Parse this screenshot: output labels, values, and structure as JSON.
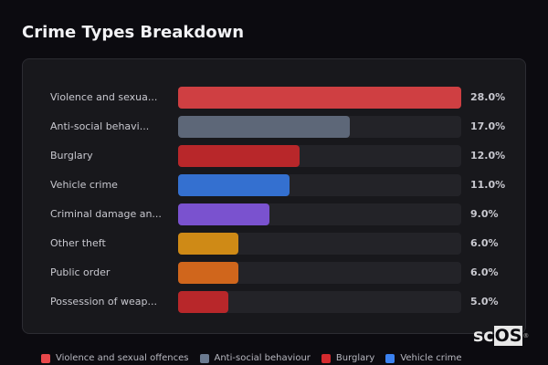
{
  "title": "Crime Types Breakdown",
  "chart_data": {
    "type": "bar",
    "orientation": "horizontal",
    "title": "Crime Types Breakdown",
    "categories": [
      "Violence and sexual offences",
      "Anti-social behaviour",
      "Burglary",
      "Vehicle crime",
      "Criminal damage and arson",
      "Other theft",
      "Public order",
      "Possession of weapons"
    ],
    "display_labels": [
      "Violence and sexua...",
      "Anti-social behavi...",
      "Burglary",
      "Vehicle crime",
      "Criminal damage an...",
      "Other theft",
      "Public order",
      "Possession of weap..."
    ],
    "values": [
      28.0,
      17.0,
      12.0,
      11.0,
      9.0,
      6.0,
      6.0,
      5.0
    ],
    "value_labels": [
      "28.0%",
      "17.0%",
      "12.0%",
      "11.0%",
      "9.0%",
      "6.0%",
      "6.0%",
      "5.0%"
    ],
    "colors": [
      "#cf3f42",
      "#5d6778",
      "#b8272a",
      "#3470d0",
      "#7a52cf",
      "#cf8a16",
      "#d0661c",
      "#b8272a"
    ],
    "unit": "%",
    "xlabel": "",
    "ylabel": "",
    "grid": false,
    "legend_position": "bottom"
  },
  "legend": [
    {
      "label": "Violence and sexual offences",
      "color": "#e8484b"
    },
    {
      "label": "Anti-social behaviour",
      "color": "#6b7a90"
    },
    {
      "label": "Burglary",
      "color": "#d42a2e"
    },
    {
      "label": "Vehicle crime",
      "color": "#3b82f0"
    }
  ],
  "watermark": {
    "prefix": "sc",
    "boxed": "OS",
    "mark": "®"
  }
}
